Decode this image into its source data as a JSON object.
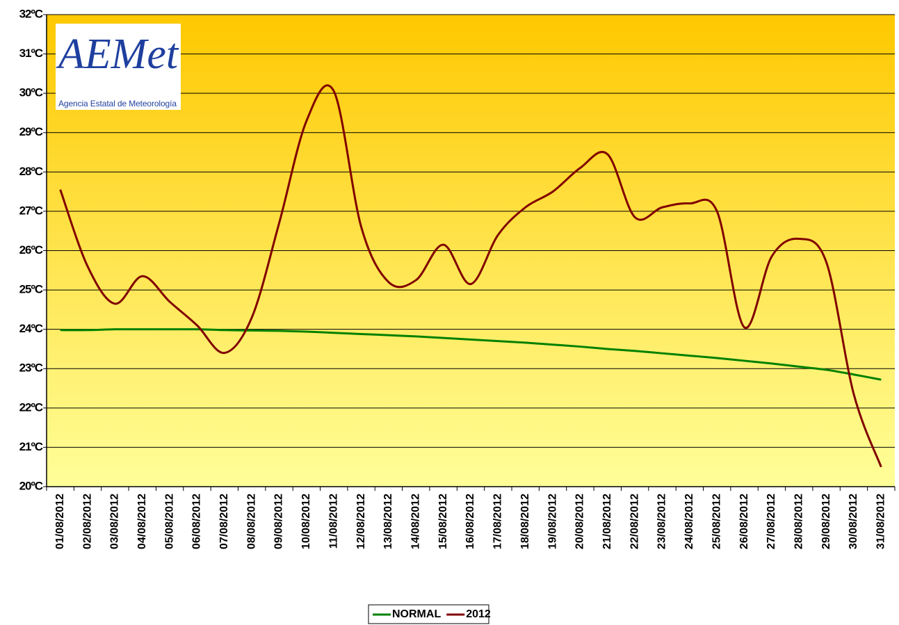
{
  "chart_data": {
    "type": "line",
    "logo": {
      "text": "AEMet",
      "subtitle": "Agencia Estatal de Meteorología"
    },
    "categories": [
      "01/08/2012",
      "02/08/2012",
      "03/08/2012",
      "04/08/2012",
      "05/08/2012",
      "06/08/2012",
      "07/08/2012",
      "08/08/2012",
      "09/08/2012",
      "10/08/2012",
      "11/08/2012",
      "12/08/2012",
      "13/08/2012",
      "14/08/2012",
      "15/08/2012",
      "16/08/2012",
      "17/08/2012",
      "18/08/2012",
      "19/08/2012",
      "20/08/2012",
      "21/08/2012",
      "22/08/2012",
      "23/08/2012",
      "24/08/2012",
      "25/08/2012",
      "26/08/2012",
      "27/08/2012",
      "28/08/2012",
      "29/08/2012",
      "30/08/2012",
      "31/08/2012"
    ],
    "series": [
      {
        "name": "NORMAL",
        "color": "#008000",
        "values": [
          23.98,
          23.98,
          24.0,
          24.0,
          24.0,
          24.0,
          23.98,
          23.97,
          23.96,
          23.94,
          23.91,
          23.88,
          23.85,
          23.82,
          23.78,
          23.74,
          23.7,
          23.66,
          23.61,
          23.56,
          23.5,
          23.45,
          23.39,
          23.33,
          23.27,
          23.2,
          23.13,
          23.05,
          22.97,
          22.85,
          22.72
        ]
      },
      {
        "name": "2012",
        "color": "#800000",
        "values": [
          27.55,
          25.6,
          24.65,
          25.35,
          24.7,
          24.1,
          23.4,
          24.3,
          26.7,
          29.3,
          30.05,
          26.6,
          25.2,
          25.25,
          26.15,
          25.15,
          26.4,
          27.1,
          27.5,
          28.1,
          28.45,
          26.85,
          27.1,
          27.2,
          27.0,
          24.05,
          25.85,
          26.3,
          25.7,
          22.35,
          20.5
        ]
      }
    ],
    "ylim": [
      20,
      32
    ],
    "yticks": [
      {
        "value": 20,
        "label": "20ºC"
      },
      {
        "value": 21,
        "label": "21ºC"
      },
      {
        "value": 22,
        "label": "22ºC"
      },
      {
        "value": 23,
        "label": "23ºC"
      },
      {
        "value": 24,
        "label": "24ºC"
      },
      {
        "value": 25,
        "label": "25ºC"
      },
      {
        "value": 26,
        "label": "26ºC"
      },
      {
        "value": 27,
        "label": "27ºC"
      },
      {
        "value": 28,
        "label": "28ºC"
      },
      {
        "value": 29,
        "label": "29ºC"
      },
      {
        "value": 30,
        "label": "30ºC"
      },
      {
        "value": 31,
        "label": "31ºC"
      },
      {
        "value": 32,
        "label": "32ºC"
      }
    ],
    "grid": true,
    "legend": "bottom"
  }
}
